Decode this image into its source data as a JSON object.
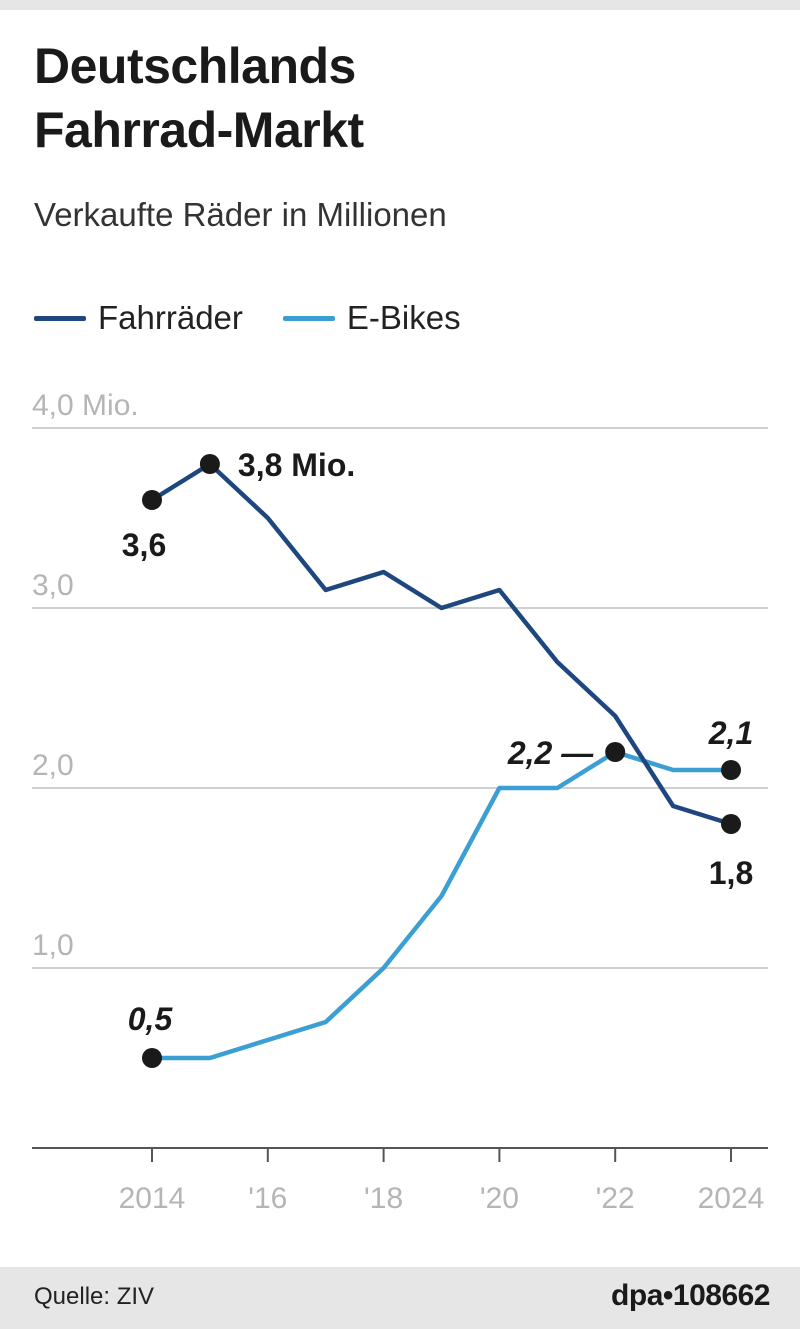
{
  "title_lines": [
    "Deutschlands",
    "Fahrrad-Markt"
  ],
  "subtitle": "Verkaufte Räder in Millionen",
  "legend": [
    {
      "label": "Fahrräder",
      "color": "#1f477f"
    },
    {
      "label": "E-Bikes",
      "color": "#3b9fd3"
    }
  ],
  "source": "Quelle: ZIV",
  "credit": "dpa•108662",
  "chart_data": {
    "type": "line",
    "title": "Deutschlands Fahrrad-Markt",
    "subtitle": "Verkaufte Räder in Millionen",
    "x": [
      2014,
      2015,
      2016,
      2017,
      2018,
      2019,
      2020,
      2021,
      2022,
      2023,
      2024
    ],
    "x_tick_labels": [
      {
        "x": 2014,
        "label": "2014"
      },
      {
        "x": 2016,
        "label": "'16"
      },
      {
        "x": 2018,
        "label": "'18"
      },
      {
        "x": 2020,
        "label": "'20"
      },
      {
        "x": 2022,
        "label": "'22"
      },
      {
        "x": 2024,
        "label": "2024"
      }
    ],
    "y_tick_labels": [
      {
        "y": 1.0,
        "label": "1,0"
      },
      {
        "y": 2.0,
        "label": "2,0"
      },
      {
        "y": 3.0,
        "label": "3,0"
      },
      {
        "y": 4.0,
        "label": "4,0 Mio."
      }
    ],
    "ylim": [
      0,
      4.0
    ],
    "xlim": [
      2014,
      2024
    ],
    "grid": true,
    "legend_position": "top-left",
    "series": [
      {
        "name": "Fahrräder",
        "color": "#1f477f",
        "values": [
          3.6,
          3.8,
          3.5,
          3.1,
          3.2,
          3.0,
          3.1,
          2.7,
          2.4,
          1.9,
          1.8
        ],
        "annotations": [
          {
            "x": 2014,
            "y": 3.6,
            "label": "3,6"
          },
          {
            "x": 2015,
            "y": 3.8,
            "label": "3,8 Mio."
          },
          {
            "x": 2024,
            "y": 1.8,
            "label": "1,8"
          }
        ]
      },
      {
        "name": "E-Bikes",
        "color": "#3b9fd3",
        "values": [
          0.5,
          0.5,
          0.6,
          0.7,
          1.0,
          1.4,
          2.0,
          2.0,
          2.2,
          2.1,
          2.1
        ],
        "annotations": [
          {
            "x": 2014,
            "y": 0.5,
            "label": "0,5"
          },
          {
            "x": 2022,
            "y": 2.2,
            "label": "2,2 —"
          },
          {
            "x": 2024,
            "y": 2.1,
            "label": "2,1"
          }
        ]
      }
    ],
    "colors": {
      "grid": "#cfcfcf",
      "axis_text": "#b5b5b5",
      "marker": "#1a1a1a",
      "baseline": "#555555"
    }
  }
}
